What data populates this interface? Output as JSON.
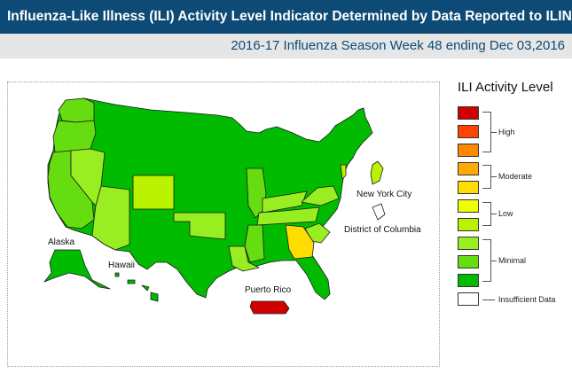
{
  "header": {
    "title": "Influenza-Like Illness (ILI) Activity Level Indicator Determined by Data Reported to ILINet",
    "subtitle": "2016-17 Influenza Season Week 48 ending Dec 03,2016"
  },
  "legend": {
    "title": "ILI Activity Level",
    "labels": {
      "high": "High",
      "moderate": "Moderate",
      "low": "Low",
      "minimal": "Minimal",
      "insufficient": "Insufficient Data"
    },
    "swatches": [
      {
        "level": 10,
        "color": "#d10000"
      },
      {
        "level": 9,
        "color": "#ff4400"
      },
      {
        "level": 8,
        "color": "#ff8800"
      },
      {
        "level": 7,
        "color": "#ffaa00"
      },
      {
        "level": 6,
        "color": "#ffdd00"
      },
      {
        "level": 5,
        "color": "#eeff00"
      },
      {
        "level": 4,
        "color": "#bbf200"
      },
      {
        "level": 3,
        "color": "#99ee22"
      },
      {
        "level": 2,
        "color": "#66dd11"
      },
      {
        "level": 1,
        "color": "#00bb00"
      },
      {
        "level": 0,
        "color": "#ffffff"
      }
    ]
  },
  "map": {
    "labels": {
      "alaska": "Alaska",
      "hawaii": "Hawaii",
      "puerto_rico": "Puerto Rico",
      "new_york_city": "New York City",
      "dc": "District of Columbia"
    },
    "colors": {
      "minimal_dark": "#00bb00",
      "minimal_light": "#66dd11",
      "minimal_lime": "#99ee22",
      "low_light": "#bbf200",
      "moderate_yellow": "#ffdd00",
      "high_red": "#d10000",
      "border": "#1a1a1a"
    },
    "regions_of_note": {
      "high": [
        "Puerto Rico"
      ],
      "moderate": [
        "Georgia"
      ],
      "low": [
        "Wyoming",
        "Louisiana",
        "Oklahoma",
        "Kentucky",
        "New York City"
      ],
      "minimal_light": [
        "Washington",
        "Oregon",
        "California",
        "Nevada",
        "Arizona",
        "Illinois",
        "Virginia",
        "Tennessee",
        "Mississippi",
        "South Carolina"
      ],
      "insufficient": [
        "District of Columbia"
      ]
    }
  }
}
